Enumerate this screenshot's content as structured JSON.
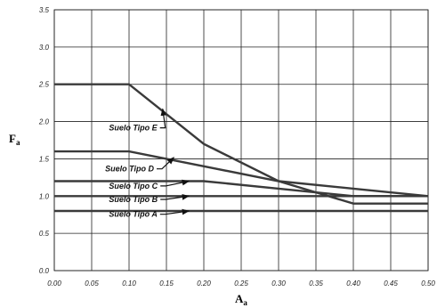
{
  "chart_data": {
    "type": "line",
    "xlabel": "A",
    "xlabel_sub": "a",
    "ylabel": "F",
    "ylabel_sub": "a",
    "xlim": [
      0,
      0.5
    ],
    "ylim": [
      0,
      3.5
    ],
    "xticks": [
      "0.00",
      "0.05",
      "0.10",
      "0.15",
      "0.20",
      "0.25",
      "0.30",
      "0.35",
      "0.40",
      "0.45",
      "0.50"
    ],
    "yticks": [
      "0.0",
      "0.5",
      "1.0",
      "1.5",
      "2.0",
      "2.5",
      "3.0",
      "3.5"
    ],
    "grid": true,
    "series": [
      {
        "name": "Suelo Tipo E",
        "x": [
          0,
          0.1,
          0.2,
          0.3,
          0.4,
          0.5
        ],
        "y": [
          2.5,
          2.5,
          1.7,
          1.2,
          0.9,
          0.9
        ]
      },
      {
        "name": "Suelo Tipo D",
        "x": [
          0,
          0.1,
          0.2,
          0.3,
          0.4,
          0.5
        ],
        "y": [
          1.6,
          1.6,
          1.4,
          1.2,
          1.1,
          1.0
        ]
      },
      {
        "name": "Suelo Tipo C",
        "x": [
          0,
          0.1,
          0.2,
          0.3,
          0.4,
          0.5
        ],
        "y": [
          1.2,
          1.2,
          1.2,
          1.1,
          1.0,
          1.0
        ]
      },
      {
        "name": "Suelo Tipo B",
        "x": [
          0,
          0.5
        ],
        "y": [
          1.0,
          1.0
        ]
      },
      {
        "name": "Suelo Tipo A",
        "x": [
          0,
          0.5
        ],
        "y": [
          0.8,
          0.8
        ]
      }
    ],
    "annotations": [
      {
        "text": "Suelo Tipo E",
        "series": 0,
        "point": [
          0.145,
          2.17
        ],
        "label_at": [
          0.073,
          1.88
        ]
      },
      {
        "text": "Suelo Tipo D",
        "series": 1,
        "point": [
          0.16,
          1.52
        ],
        "label_at": [
          0.068,
          1.33
        ]
      },
      {
        "text": "Suelo Tipo C",
        "series": 2,
        "point": [
          0.18,
          1.2
        ],
        "label_at": [
          0.073,
          1.1
        ]
      },
      {
        "text": "Suelo Tipo B",
        "series": 3,
        "point": [
          0.18,
          1.0
        ],
        "label_at": [
          0.073,
          0.92
        ]
      },
      {
        "text": "Suelo Tipo A",
        "series": 4,
        "point": [
          0.18,
          0.8
        ],
        "label_at": [
          0.073,
          0.72
        ]
      }
    ]
  }
}
